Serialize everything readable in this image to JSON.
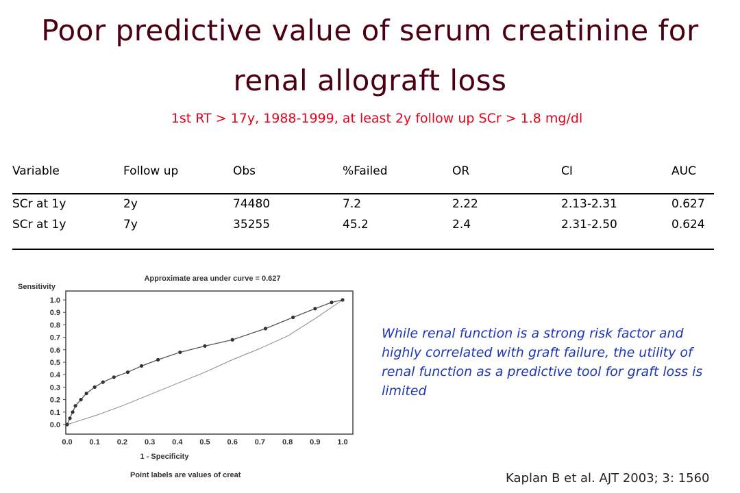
{
  "slide": {
    "title_line1": "Poor predictive value of serum creatinine for",
    "title_line2": "renal allograft loss",
    "subtitle": "1st RT > 17y, 1988-1999, at least 2y follow up SCr > 1.8 mg/dl",
    "citation": "Kaplan B et al. AJT 2003; 3: 1560",
    "quote": "While renal function is a strong risk factor and highly correlated with graft failure, the utility of renal function as a predictive tool for graft loss is limited",
    "title_color": "#4a0012",
    "subtitle_color": "#e8001a",
    "quote_color": "#1e36b8"
  },
  "table": {
    "headers": [
      "Variable",
      "Follow up",
      "Obs",
      "%Failed",
      "OR",
      "CI",
      "AUC"
    ],
    "rows": [
      [
        "SCr at 1y",
        "2y",
        "74480",
        "7.2",
        "2.22",
        "2.13-2.31",
        "0.627"
      ],
      [
        "SCr at 1y",
        "7y",
        "35255",
        "45.2",
        "2.4",
        "2.31-2.50",
        "0.624"
      ]
    ]
  },
  "chart_data": {
    "type": "line",
    "title": "Approximate area under curve = 0.627",
    "xlabel": "1 - Specificity",
    "ylabel": "Sensitivity",
    "footnote": "Point labels are values of creat",
    "xlim": [
      0,
      1
    ],
    "ylim": [
      0,
      1
    ],
    "x_ticks": [
      "0.0",
      "0.1",
      "0.2",
      "0.3",
      "0.4",
      "0.5",
      "0.6",
      "0.7",
      "0.8",
      "0.9",
      "1.0"
    ],
    "y_ticks": [
      "0.0",
      "0.1",
      "0.2",
      "0.3",
      "0.4",
      "0.5",
      "0.6",
      "0.7",
      "0.8",
      "0.9",
      "1.0"
    ],
    "series": [
      {
        "values_x": [
          0.0,
          0.01,
          0.02,
          0.03,
          0.05,
          0.07,
          0.1,
          0.13,
          0.17,
          0.22,
          0.27,
          0.33,
          0.41,
          0.5,
          0.6,
          0.72,
          0.82,
          0.9,
          0.96,
          1.0
        ],
        "values_y": [
          0.0,
          0.05,
          0.1,
          0.15,
          0.2,
          0.25,
          0.3,
          0.34,
          0.38,
          0.42,
          0.47,
          0.52,
          0.58,
          0.63,
          0.68,
          0.77,
          0.86,
          0.93,
          0.98,
          1.0
        ]
      },
      {
        "values_x": [
          0.0,
          0.1,
          0.2,
          0.3,
          0.4,
          0.5,
          0.6,
          0.7,
          0.8,
          0.9,
          1.0
        ],
        "values_y": [
          0.0,
          0.07,
          0.15,
          0.24,
          0.33,
          0.42,
          0.52,
          0.61,
          0.71,
          0.85,
          1.0
        ]
      }
    ],
    "grid": false
  }
}
